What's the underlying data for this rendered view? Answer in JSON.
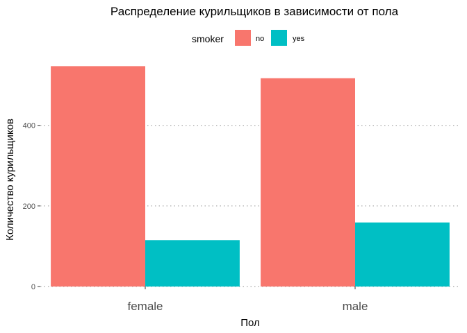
{
  "chart_data": {
    "type": "bar",
    "title": "Распределение курильщиков в зависимости от пола",
    "xlabel": "Пол",
    "ylabel": "Количество курильщиков",
    "categories": [
      "female",
      "male"
    ],
    "legend": {
      "title": "smoker",
      "placement": "top"
    },
    "series": [
      {
        "name": "no",
        "color": "#F8766D",
        "values": [
          547,
          517
        ]
      },
      {
        "name": "yes",
        "color": "#00BFC4",
        "values": [
          115,
          159
        ]
      }
    ],
    "ylim": [
      0,
      570
    ],
    "yticks": [
      0,
      200,
      400
    ],
    "grid": true
  }
}
